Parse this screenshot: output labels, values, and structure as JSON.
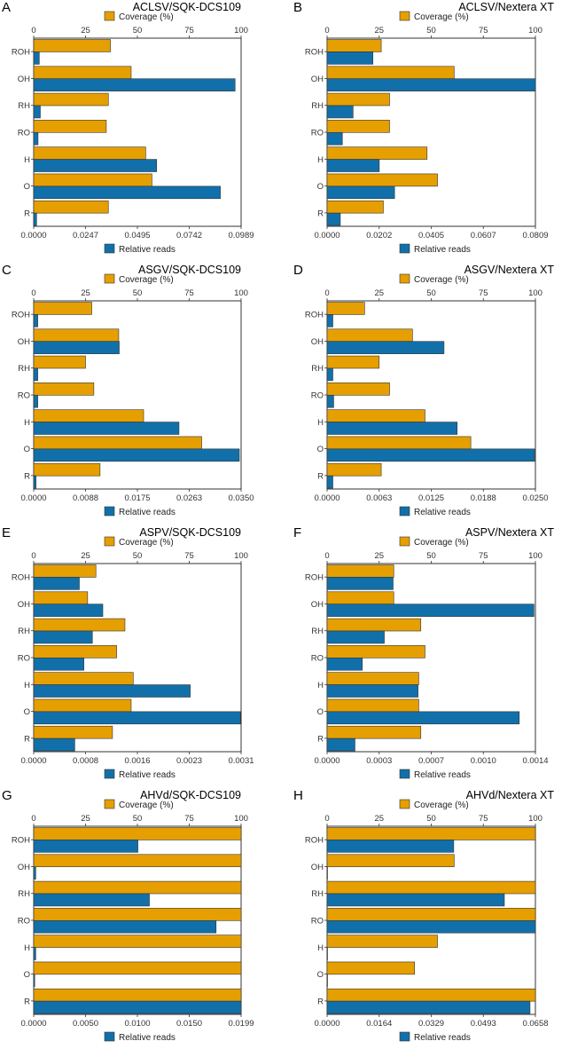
{
  "colors": {
    "coverage": "#E69F00",
    "reads": "#1170AA",
    "edge": "#333333"
  },
  "legend": {
    "coverage_label": "Coverage (%)",
    "reads_label": "Relative reads"
  },
  "chart_data": [
    {
      "panel": "A",
      "title": "ACLSV/SQK-DCS109",
      "type": "bar",
      "orientation": "horizontal",
      "categories": [
        "ROH",
        "OH",
        "RH",
        "RO",
        "H",
        "O",
        "R"
      ],
      "coverage": [
        37,
        47,
        36,
        35,
        54,
        57,
        36
      ],
      "reads": [
        0.0027,
        0.0971,
        0.0032,
        0.0021,
        0.0593,
        0.09,
        0.0014
      ],
      "coverage_ticks": [
        "0",
        "25",
        "50",
        "75",
        "100"
      ],
      "reads_ticks": [
        "0.0000",
        "0.0247",
        "0.0495",
        "0.0742",
        "0.0989"
      ],
      "reads_max": 0.1
    },
    {
      "panel": "B",
      "title": "ACLSV/Nextera XT",
      "type": "bar",
      "orientation": "horizontal",
      "categories": [
        "ROH",
        "OH",
        "RH",
        "RO",
        "H",
        "O",
        "R"
      ],
      "coverage": [
        26,
        61,
        30,
        30,
        48,
        53,
        27
      ],
      "reads": [
        0.018,
        0.0818,
        0.0102,
        0.006,
        0.0205,
        0.0265,
        0.0052
      ],
      "coverage_ticks": [
        "0",
        "25",
        "50",
        "75",
        "100"
      ],
      "reads_ticks": [
        "0.0000",
        "0.0202",
        "0.0405",
        "0.0607",
        "0.0809"
      ],
      "reads_max": 0.0818
    },
    {
      "panel": "C",
      "title": "ASGV/SQK-DCS109",
      "type": "bar",
      "orientation": "horizontal",
      "categories": [
        "ROH",
        "OH",
        "RH",
        "RO",
        "H",
        "O",
        "R"
      ],
      "coverage": [
        28,
        41,
        25,
        29,
        53,
        81,
        32
      ],
      "reads": [
        0.0007,
        0.0146,
        0.0007,
        0.0007,
        0.0248,
        0.0351,
        0.0004
      ],
      "coverage_ticks": [
        "0",
        "25",
        "50",
        "75",
        "100"
      ],
      "reads_ticks": [
        "0.0000",
        "0.0088",
        "0.0175",
        "0.0263",
        "0.0350"
      ],
      "reads_max": 0.0354
    },
    {
      "panel": "D",
      "title": "ASGV/Nextera XT",
      "type": "bar",
      "orientation": "horizontal",
      "categories": [
        "ROH",
        "OH",
        "RH",
        "RO",
        "H",
        "O",
        "R"
      ],
      "coverage": [
        18,
        41,
        25,
        30,
        47,
        69,
        26
      ],
      "reads": [
        0.0007,
        0.0142,
        0.0007,
        0.0008,
        0.0158,
        0.0252,
        0.0007
      ],
      "coverage_ticks": [
        "0",
        "25",
        "50",
        "75",
        "100"
      ],
      "reads_ticks": [
        "0.0000",
        "0.0063",
        "0.0125",
        "0.0188",
        "0.0250"
      ],
      "reads_max": 0.0253
    },
    {
      "panel": "E",
      "title": "ASPV/SQK-DCS109",
      "type": "bar",
      "orientation": "horizontal",
      "categories": [
        "ROH",
        "OH",
        "RH",
        "RO",
        "H",
        "O",
        "R"
      ],
      "coverage": [
        30,
        26,
        44,
        40,
        48,
        47,
        38
      ],
      "reads": [
        0.0007,
        0.00106,
        0.0009,
        0.00077,
        0.0024,
        0.00317,
        0.00063
      ],
      "coverage_ticks": [
        "0",
        "25",
        "50",
        "75",
        "100"
      ],
      "reads_ticks": [
        "0.0000",
        "0.0008",
        "0.0016",
        "0.0023",
        "0.0031"
      ],
      "reads_max": 0.00318
    },
    {
      "panel": "F",
      "title": "ASPV/Nextera XT",
      "type": "bar",
      "orientation": "horizontal",
      "categories": [
        "ROH",
        "OH",
        "RH",
        "RO",
        "H",
        "O",
        "R"
      ],
      "coverage": [
        32,
        32,
        45,
        47,
        44,
        44,
        45
      ],
      "reads": [
        0.00045,
        0.00141,
        0.00039,
        0.00024,
        0.00062,
        0.00131,
        0.00019
      ],
      "coverage_ticks": [
        "0",
        "25",
        "50",
        "75",
        "100"
      ],
      "reads_ticks": [
        "0.0000",
        "0.0003",
        "0.0007",
        "0.0010",
        "0.0014"
      ],
      "reads_max": 0.00142
    },
    {
      "panel": "G",
      "title": "AHVd/SQK-DCS109",
      "type": "bar",
      "orientation": "horizontal",
      "categories": [
        "ROH",
        "OH",
        "RH",
        "RO",
        "H",
        "O",
        "R"
      ],
      "coverage": [
        100,
        100,
        100,
        100,
        100,
        100,
        100
      ],
      "reads": [
        0.01,
        0.0002,
        0.0111,
        0.0175,
        0.0002,
        0.0001,
        0.0199
      ],
      "coverage_ticks": [
        "0",
        "25",
        "50",
        "75",
        "100"
      ],
      "reads_ticks": [
        "0.0000",
        "0.0050",
        "0.0100",
        "0.0150",
        "0.0199"
      ],
      "reads_max": 0.0199
    },
    {
      "panel": "H",
      "title": "AHVd/Nextera XT",
      "type": "bar",
      "orientation": "horizontal",
      "categories": [
        "ROH",
        "OH",
        "RH",
        "RO",
        "H",
        "O",
        "R"
      ],
      "coverage": [
        100,
        61,
        100,
        100,
        53,
        42,
        100
      ],
      "reads": [
        0.04,
        0.0001,
        0.056,
        0.0658,
        0.0001,
        0.0001,
        0.0641
      ],
      "coverage_ticks": [
        "0",
        "25",
        "50",
        "75",
        "100"
      ],
      "reads_ticks": [
        "0.0000",
        "0.0164",
        "0.0329",
        "0.0493",
        "0.0658"
      ],
      "reads_max": 0.0658
    }
  ]
}
